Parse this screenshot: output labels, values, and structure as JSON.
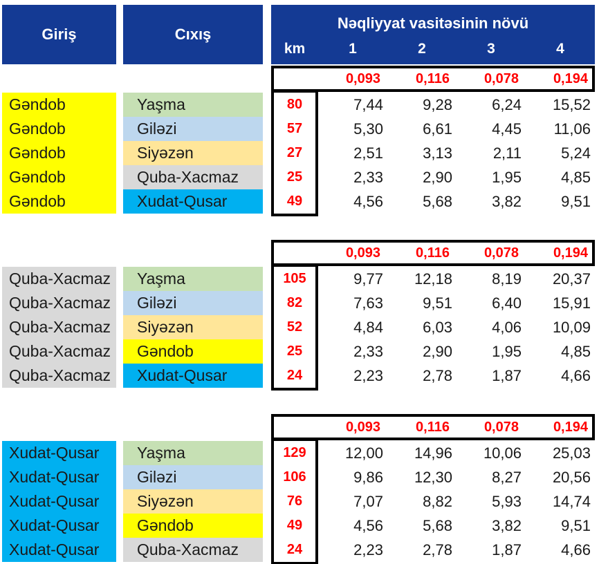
{
  "header": {
    "entry_label": "Giriş",
    "exit_label": "Cıxış",
    "vehicle_type_label": "Nəqliyyat vasitəsinin növü",
    "km_label": "km",
    "class_labels": [
      "1",
      "2",
      "3",
      "4"
    ]
  },
  "colors": {
    "header_blue": "#143A94",
    "yellow": "#FFFF00",
    "green": "#C6E0B4",
    "light_blue": "#BDD7EE",
    "tan": "#FFE699",
    "gray": "#D9D9D9",
    "cyan": "#00B0F0",
    "rate_red": "#FF0000"
  },
  "groups": [
    {
      "entry": "Gəndob",
      "rates": [
        "0,093",
        "0,116",
        "0,078",
        "0,194"
      ],
      "rows": [
        {
          "entry": "Gəndob",
          "exit": "Yaşma",
          "km": "80",
          "values": [
            "7,44",
            "9,28",
            "6,24",
            "15,52"
          ]
        },
        {
          "entry": "Gəndob",
          "exit": "Giləzi",
          "km": "57",
          "values": [
            "5,30",
            "6,61",
            "4,45",
            "11,06"
          ]
        },
        {
          "entry": "Gəndob",
          "exit": "Siyəzən",
          "km": "27",
          "values": [
            "2,51",
            "3,13",
            "2,11",
            "5,24"
          ]
        },
        {
          "entry": "Gəndob",
          "exit": "Quba-Xacmaz",
          "km": "25",
          "values": [
            "2,33",
            "2,90",
            "1,95",
            "4,85"
          ]
        },
        {
          "entry": "Gəndob",
          "exit": "Xudat-Qusar",
          "km": "49",
          "values": [
            "4,56",
            "5,68",
            "3,82",
            "9,51"
          ]
        }
      ]
    },
    {
      "entry": "Quba-Xacmaz",
      "rates": [
        "0,093",
        "0,116",
        "0,078",
        "0,194"
      ],
      "rows": [
        {
          "entry": "Quba-Xacmaz",
          "exit": "Yaşma",
          "km": "105",
          "values": [
            "9,77",
            "12,18",
            "8,19",
            "20,37"
          ]
        },
        {
          "entry": "Quba-Xacmaz",
          "exit": "Giləzi",
          "km": "82",
          "values": [
            "7,63",
            "9,51",
            "6,40",
            "15,91"
          ]
        },
        {
          "entry": "Quba-Xacmaz",
          "exit": "Siyəzən",
          "km": "52",
          "values": [
            "4,84",
            "6,03",
            "4,06",
            "10,09"
          ]
        },
        {
          "entry": "Quba-Xacmaz",
          "exit": "Gəndob",
          "km": "25",
          "values": [
            "2,33",
            "2,90",
            "1,95",
            "4,85"
          ]
        },
        {
          "entry": "Quba-Xacmaz",
          "exit": "Xudat-Qusar",
          "km": "24",
          "values": [
            "2,23",
            "2,78",
            "1,87",
            "4,66"
          ]
        }
      ]
    },
    {
      "entry": "Xudat-Qusar",
      "rates": [
        "0,093",
        "0,116",
        "0,078",
        "0,194"
      ],
      "rows": [
        {
          "entry": "Xudat-Qusar",
          "exit": "Yaşma",
          "km": "129",
          "values": [
            "12,00",
            "14,96",
            "10,06",
            "25,03"
          ]
        },
        {
          "entry": "Xudat-Qusar",
          "exit": "Giləzi",
          "km": "106",
          "values": [
            "9,86",
            "12,30",
            "8,27",
            "20,56"
          ]
        },
        {
          "entry": "Xudat-Qusar",
          "exit": "Siyəzən",
          "km": "76",
          "values": [
            "7,07",
            "8,82",
            "5,93",
            "14,74"
          ]
        },
        {
          "entry": "Xudat-Qusar",
          "exit": "Gəndob",
          "km": "49",
          "values": [
            "4,56",
            "5,68",
            "3,82",
            "9,51"
          ]
        },
        {
          "entry": "Xudat-Qusar",
          "exit": "Quba-Xacmaz",
          "km": "24",
          "values": [
            "2,23",
            "2,78",
            "1,87",
            "4,66"
          ]
        }
      ]
    }
  ]
}
